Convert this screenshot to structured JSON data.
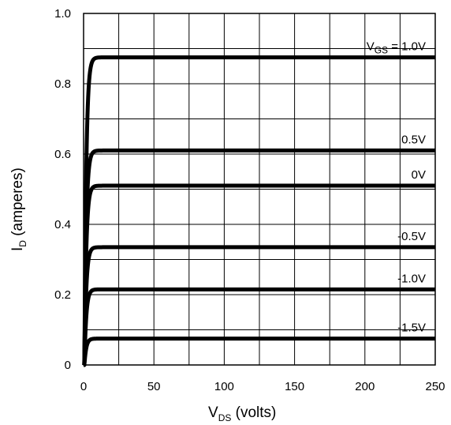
{
  "chart_data": {
    "type": "line",
    "xlabel": {
      "main": "V",
      "sub": "DS",
      "rest": " (volts)"
    },
    "ylabel": {
      "main": "I",
      "sub": "D",
      "rest": " (amperes)"
    },
    "xlim": [
      0,
      250
    ],
    "ylim": [
      0,
      1.0
    ],
    "x_ticks": [
      0,
      50,
      100,
      150,
      200,
      250
    ],
    "x_tick_labels": [
      "0",
      "50",
      "100",
      "150",
      "200",
      "250"
    ],
    "y_ticks": [
      0,
      0.2,
      0.4,
      0.6,
      0.8,
      1.0
    ],
    "y_tick_labels": [
      "0",
      "0.2",
      "0.4",
      "0.6",
      "0.8",
      "1.0"
    ],
    "grid": true,
    "series": [
      {
        "label": {
          "main": "V",
          "sub": "GS",
          "rest": " = 1.0V"
        },
        "saturation_current": 0.875
      },
      {
        "label": {
          "main": "0.5V",
          "sub": "",
          "rest": ""
        },
        "saturation_current": 0.61
      },
      {
        "label": {
          "main": "0V",
          "sub": "",
          "rest": ""
        },
        "saturation_current": 0.51
      },
      {
        "label": {
          "main": "-0.5V",
          "sub": "",
          "rest": ""
        },
        "saturation_current": 0.335
      },
      {
        "label": {
          "main": "-1.0V",
          "sub": "",
          "rest": ""
        },
        "saturation_current": 0.215
      },
      {
        "label": {
          "main": "-1.5V",
          "sub": "",
          "rest": ""
        },
        "saturation_current": 0.075
      }
    ]
  }
}
